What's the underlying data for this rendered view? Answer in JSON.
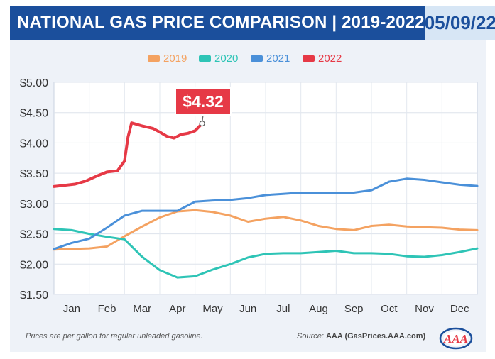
{
  "header": {
    "title": "NATIONAL GAS PRICE COMPARISON | 2019-2022",
    "date": "05/09/22"
  },
  "footer": {
    "note": "Prices are per gallon for regular unleaded gasoline.",
    "source_prefix": "Source:",
    "source": "AAA (GasPrices.AAA.com)",
    "logo_text": "AAA"
  },
  "colors": {
    "2019": "#f4a261",
    "2020": "#2ec4b6",
    "2021": "#4a90d9",
    "2022": "#e63946"
  },
  "chart_data": {
    "type": "line",
    "title": "NATIONAL GAS PRICE COMPARISON | 2019-2022",
    "xlabel": "",
    "ylabel": "",
    "categories": [
      "Jan",
      "Feb",
      "Mar",
      "Apr",
      "May",
      "Jun",
      "Jul",
      "Aug",
      "Sep",
      "Oct",
      "Nov",
      "Dec"
    ],
    "x_range": [
      0,
      12
    ],
    "ylim": [
      1.5,
      5.0
    ],
    "yticks": [
      "$1.50",
      "$2.00",
      "$2.50",
      "$3.00",
      "$3.50",
      "$4.00",
      "$4.50",
      "$5.00"
    ],
    "ytick_values": [
      1.5,
      2.0,
      2.5,
      3.0,
      3.5,
      4.0,
      4.5,
      5.0
    ],
    "grid": true,
    "legend": "top-center",
    "annotation": {
      "text": "$4.32",
      "x": 4.2,
      "y": 4.32,
      "series": "2022"
    },
    "series": [
      {
        "name": "2019",
        "x": [
          0,
          0.5,
          1,
          1.5,
          2,
          2.5,
          3,
          3.5,
          4,
          4.5,
          5,
          5.5,
          6,
          6.5,
          7,
          7.5,
          8,
          8.5,
          9,
          9.5,
          10,
          10.5,
          11,
          11.5,
          12
        ],
        "y": [
          2.24,
          2.25,
          2.26,
          2.29,
          2.46,
          2.62,
          2.77,
          2.87,
          2.89,
          2.86,
          2.8,
          2.7,
          2.75,
          2.78,
          2.72,
          2.63,
          2.58,
          2.56,
          2.63,
          2.65,
          2.62,
          2.61,
          2.6,
          2.57,
          2.56
        ]
      },
      {
        "name": "2020",
        "x": [
          0,
          0.5,
          1,
          1.5,
          2,
          2.5,
          3,
          3.5,
          4,
          4.5,
          5,
          5.5,
          6,
          6.5,
          7,
          7.5,
          8,
          8.5,
          9,
          9.5,
          10,
          10.5,
          11,
          11.5,
          12
        ],
        "y": [
          2.58,
          2.56,
          2.5,
          2.45,
          2.41,
          2.12,
          1.9,
          1.78,
          1.8,
          1.91,
          2.0,
          2.11,
          2.17,
          2.18,
          2.18,
          2.2,
          2.22,
          2.18,
          2.18,
          2.17,
          2.13,
          2.12,
          2.15,
          2.2,
          2.26
        ]
      },
      {
        "name": "2021",
        "x": [
          0,
          0.5,
          1,
          1.5,
          2,
          2.5,
          3,
          3.5,
          4,
          4.5,
          5,
          5.5,
          6,
          6.5,
          7,
          7.5,
          8,
          8.5,
          9,
          9.5,
          10,
          10.5,
          11,
          11.5,
          12
        ],
        "y": [
          2.25,
          2.35,
          2.42,
          2.6,
          2.8,
          2.88,
          2.88,
          2.88,
          3.03,
          3.05,
          3.06,
          3.09,
          3.14,
          3.16,
          3.18,
          3.17,
          3.18,
          3.18,
          3.22,
          3.36,
          3.41,
          3.39,
          3.35,
          3.31,
          3.29
        ]
      },
      {
        "name": "2022",
        "x": [
          0,
          0.3,
          0.6,
          0.9,
          1.2,
          1.5,
          1.8,
          2.0,
          2.1,
          2.2,
          2.5,
          2.8,
          3.0,
          3.2,
          3.4,
          3.6,
          3.8,
          4.0,
          4.2
        ],
        "y": [
          3.28,
          3.3,
          3.32,
          3.37,
          3.45,
          3.52,
          3.54,
          3.7,
          4.1,
          4.33,
          4.28,
          4.24,
          4.18,
          4.11,
          4.08,
          4.14,
          4.16,
          4.2,
          4.32
        ]
      }
    ]
  }
}
